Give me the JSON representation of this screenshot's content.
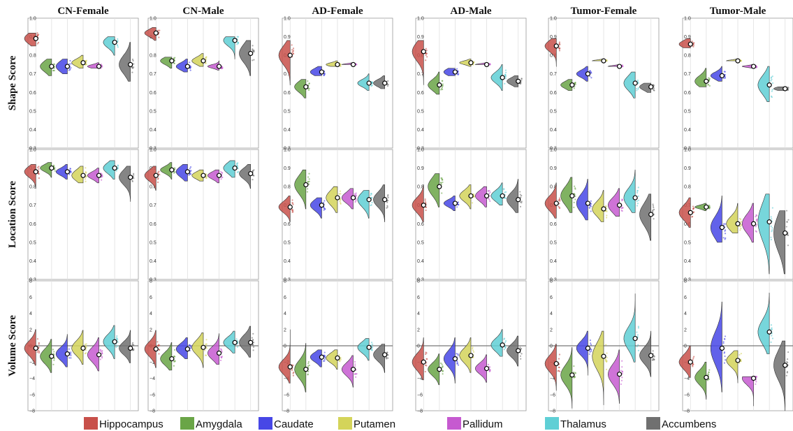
{
  "chart_data": {
    "type": "violin",
    "columns": [
      "CN-Female",
      "CN-Male",
      "AD-Female",
      "AD-Male",
      "Tumor-Female",
      "Tumor-Male"
    ],
    "rows": [
      {
        "label": "Shape Score",
        "ylim": [
          0.3,
          1.0
        ],
        "ticks": [
          "0.3",
          "0.4",
          "0.5",
          "0.6",
          "0.7",
          "0.8",
          "0.9",
          "1.0"
        ],
        "zero_line": false
      },
      {
        "label": "Location Score",
        "ylim": [
          0.3,
          1.0
        ],
        "ticks": [
          "0.3",
          "0.4",
          "0.5",
          "0.6",
          "0.7",
          "0.8",
          "0.9",
          "1.0"
        ],
        "zero_line": false
      },
      {
        "label": "Volume Score",
        "ylim": [
          -8,
          8
        ],
        "ticks": [
          "−8",
          "−6",
          "−4",
          "−2",
          "0",
          "2",
          "4",
          "6",
          "8"
        ],
        "zero_line": true
      }
    ],
    "structures": [
      "Hippocampus",
      "Amygdala",
      "Caudate",
      "Putamen",
      "Pallidum",
      "Thalamus",
      "Accumbens"
    ],
    "colors": [
      "#c8504a",
      "#6aa547",
      "#4747e6",
      "#d4d45a",
      "#c65ad0",
      "#5fcfd5",
      "#707070"
    ],
    "legend_position": "bottom",
    "grid": true,
    "data": {
      "Shape Score": {
        "CN-Female": [
          [
            0.89,
            0.85,
            0.92,
            0.03
          ],
          [
            0.74,
            0.69,
            0.78,
            0.03
          ],
          [
            0.74,
            0.7,
            0.78,
            0.03
          ],
          [
            0.76,
            0.73,
            0.8,
            0.02
          ],
          [
            0.74,
            0.73,
            0.76,
            0.01
          ],
          [
            0.87,
            0.8,
            0.9,
            0.03
          ],
          [
            0.75,
            0.66,
            0.87,
            0.05
          ]
        ],
        "CN-Male": [
          [
            0.92,
            0.88,
            0.95,
            0.02
          ],
          [
            0.77,
            0.73,
            0.79,
            0.02
          ],
          [
            0.74,
            0.71,
            0.78,
            0.02
          ],
          [
            0.77,
            0.74,
            0.81,
            0.02
          ],
          [
            0.74,
            0.72,
            0.77,
            0.01
          ],
          [
            0.88,
            0.78,
            0.9,
            0.03
          ],
          [
            0.81,
            0.69,
            0.88,
            0.05
          ]
        ],
        "AD-Female": [
          [
            0.8,
            0.64,
            0.88,
            0.05
          ],
          [
            0.63,
            0.57,
            0.67,
            0.03
          ],
          [
            0.71,
            0.69,
            0.74,
            0.02
          ],
          [
            0.75,
            0.74,
            0.77,
            0.01
          ],
          [
            0.75,
            0.75,
            0.76,
            0.005
          ],
          [
            0.65,
            0.61,
            0.7,
            0.02
          ],
          [
            0.65,
            0.62,
            0.69,
            0.02
          ]
        ],
        "AD-Male": [
          [
            0.82,
            0.64,
            0.88,
            0.05
          ],
          [
            0.64,
            0.59,
            0.71,
            0.03
          ],
          [
            0.71,
            0.69,
            0.73,
            0.02
          ],
          [
            0.76,
            0.74,
            0.78,
            0.01
          ],
          [
            0.75,
            0.75,
            0.76,
            0.005
          ],
          [
            0.68,
            0.61,
            0.75,
            0.03
          ],
          [
            0.66,
            0.63,
            0.69,
            0.02
          ]
        ],
        "Tumor-Female": [
          [
            0.85,
            0.74,
            0.89,
            0.03
          ],
          [
            0.64,
            0.61,
            0.67,
            0.02
          ],
          [
            0.7,
            0.66,
            0.74,
            0.02
          ],
          [
            0.77,
            0.77,
            0.78,
            0.005
          ],
          [
            0.74,
            0.74,
            0.75,
            0.005
          ],
          [
            0.65,
            0.57,
            0.71,
            0.04
          ],
          [
            0.63,
            0.6,
            0.65,
            0.02
          ]
        ],
        "Tumor-Male": [
          [
            0.86,
            0.84,
            0.89,
            0.02
          ],
          [
            0.66,
            0.63,
            0.73,
            0.03
          ],
          [
            0.69,
            0.66,
            0.74,
            0.02
          ],
          [
            0.77,
            0.77,
            0.78,
            0.005
          ],
          [
            0.74,
            0.73,
            0.75,
            0.005
          ],
          [
            0.64,
            0.55,
            0.74,
            0.05
          ],
          [
            0.62,
            0.61,
            0.63,
            0.01
          ]
        ]
      },
      "Location Score": {
        "CN-Female": [
          [
            0.88,
            0.79,
            0.92,
            0.03
          ],
          [
            0.9,
            0.85,
            0.93,
            0.02
          ],
          [
            0.88,
            0.84,
            0.92,
            0.02
          ],
          [
            0.86,
            0.82,
            0.91,
            0.03
          ],
          [
            0.86,
            0.82,
            0.9,
            0.02
          ],
          [
            0.9,
            0.84,
            0.94,
            0.03
          ],
          [
            0.85,
            0.72,
            0.91,
            0.04
          ]
        ],
        "CN-Male": [
          [
            0.86,
            0.78,
            0.91,
            0.03
          ],
          [
            0.89,
            0.84,
            0.93,
            0.02
          ],
          [
            0.88,
            0.83,
            0.92,
            0.03
          ],
          [
            0.86,
            0.83,
            0.89,
            0.02
          ],
          [
            0.86,
            0.82,
            0.89,
            0.02
          ],
          [
            0.9,
            0.85,
            0.94,
            0.03
          ],
          [
            0.87,
            0.79,
            0.92,
            0.03
          ]
        ],
        "AD-Female": [
          [
            0.69,
            0.61,
            0.75,
            0.03
          ],
          [
            0.81,
            0.68,
            0.89,
            0.05
          ],
          [
            0.7,
            0.63,
            0.74,
            0.03
          ],
          [
            0.74,
            0.66,
            0.8,
            0.04
          ],
          [
            0.74,
            0.68,
            0.79,
            0.03
          ],
          [
            0.73,
            0.63,
            0.78,
            0.04
          ],
          [
            0.73,
            0.61,
            0.81,
            0.04
          ]
        ],
        "AD-Male": [
          [
            0.7,
            0.61,
            0.81,
            0.04
          ],
          [
            0.8,
            0.69,
            0.87,
            0.05
          ],
          [
            0.71,
            0.67,
            0.75,
            0.02
          ],
          [
            0.75,
            0.68,
            0.81,
            0.03
          ],
          [
            0.75,
            0.69,
            0.8,
            0.03
          ],
          [
            0.75,
            0.7,
            0.82,
            0.03
          ],
          [
            0.73,
            0.66,
            0.84,
            0.04
          ]
        ],
        "Tumor-Female": [
          [
            0.71,
            0.63,
            0.82,
            0.04
          ],
          [
            0.75,
            0.66,
            0.85,
            0.05
          ],
          [
            0.71,
            0.62,
            0.84,
            0.05
          ],
          [
            0.68,
            0.61,
            0.78,
            0.04
          ],
          [
            0.7,
            0.64,
            0.79,
            0.04
          ],
          [
            0.74,
            0.66,
            0.89,
            0.05
          ],
          [
            0.65,
            0.51,
            0.76,
            0.06
          ]
        ],
        "Tumor-Male": [
          [
            0.66,
            0.58,
            0.74,
            0.04
          ],
          [
            0.69,
            0.67,
            0.71,
            0.01
          ],
          [
            0.58,
            0.5,
            0.75,
            0.06
          ],
          [
            0.6,
            0.55,
            0.71,
            0.04
          ],
          [
            0.6,
            0.5,
            0.71,
            0.05
          ],
          [
            0.61,
            0.33,
            0.76,
            0.1
          ],
          [
            0.55,
            0.33,
            0.67,
            0.1
          ]
        ]
      },
      "Volume Score": {
        "CN-Female": [
          [
            -0.3,
            -2.4,
            2.0,
            0.9
          ],
          [
            -1.3,
            -3.3,
            0.8,
            0.9
          ],
          [
            -1.0,
            -2.6,
            1.4,
            0.8
          ],
          [
            -0.3,
            -2.3,
            1.9,
            0.9
          ],
          [
            -1.1,
            -3.1,
            1.0,
            0.9
          ],
          [
            0.5,
            -1.6,
            2.5,
            0.9
          ],
          [
            -0.3,
            -2.1,
            1.9,
            0.8
          ]
        ],
        "CN-Male": [
          [
            -0.4,
            -2.7,
            1.9,
            0.9
          ],
          [
            -1.6,
            -3.0,
            0.4,
            0.8
          ],
          [
            -0.4,
            -1.6,
            1.0,
            0.7
          ],
          [
            -0.2,
            -2.7,
            1.6,
            0.9
          ],
          [
            -0.9,
            -2.3,
            1.5,
            0.8
          ],
          [
            0.4,
            -0.9,
            1.8,
            0.7
          ],
          [
            0.4,
            -1.4,
            2.4,
            0.9
          ]
        ],
        "AD-Female": [
          [
            -2.6,
            -4.6,
            2.0,
            0.9
          ],
          [
            -2.9,
            -5.7,
            0.3,
            1.1
          ],
          [
            -1.4,
            -2.6,
            -0.5,
            0.6
          ],
          [
            -1.5,
            -2.9,
            -0.5,
            0.6
          ],
          [
            -2.9,
            -5.1,
            -1.2,
            0.8
          ],
          [
            -0.2,
            -1.8,
            0.9,
            0.7
          ],
          [
            -1.1,
            -3.3,
            0.2,
            0.8
          ]
        ],
        "AD-Male": [
          [
            -2.0,
            -4.2,
            1.0,
            1.0
          ],
          [
            -2.9,
            -4.8,
            -1.0,
            0.8
          ],
          [
            -1.6,
            -4.6,
            1.0,
            1.0
          ],
          [
            -1.2,
            -3.3,
            1.0,
            0.9
          ],
          [
            -2.8,
            -4.5,
            -1.1,
            0.7
          ],
          [
            0.1,
            -1.3,
            2.0,
            0.8
          ],
          [
            -0.6,
            -2.5,
            1.2,
            0.8
          ]
        ],
        "Tumor-Female": [
          [
            -2.2,
            -5.5,
            0.2,
            1.0
          ],
          [
            -3.6,
            -7.7,
            -0.2,
            1.2
          ],
          [
            -0.3,
            -3.6,
            1.8,
            0.9
          ],
          [
            -1.3,
            -7.3,
            1.8,
            1.6
          ],
          [
            -3.5,
            -7.1,
            -0.5,
            1.2
          ],
          [
            0.9,
            -2.0,
            6.4,
            1.4
          ],
          [
            -1.2,
            -3.8,
            1.8,
            1.0
          ]
        ],
        "Tumor-Male": [
          [
            -2.0,
            -3.9,
            0.0,
            0.9
          ],
          [
            -3.9,
            -6.6,
            -2.0,
            0.9
          ],
          [
            -0.3,
            -5.7,
            5.4,
            2.0
          ],
          [
            -1.8,
            -4.6,
            -0.6,
            0.8
          ],
          [
            -4.0,
            -7.4,
            -3.8,
            0.8
          ],
          [
            1.7,
            -1.0,
            6.5,
            1.5
          ],
          [
            -2.4,
            -8.0,
            0.6,
            1.8
          ]
        ]
      }
    }
  }
}
